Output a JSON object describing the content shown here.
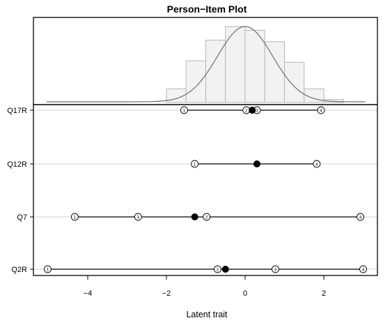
{
  "chart_data": {
    "type": "person-item",
    "title": "Person−Item Plot",
    "xlabel": "Latent trait",
    "xlim": [
      -5.1,
      3.1
    ],
    "x_ticks": [
      -4,
      -2,
      0,
      2
    ],
    "x_tick_labels": [
      "−4",
      "−2",
      "0",
      "2"
    ],
    "person_distribution": {
      "histogram": {
        "bin_edges": [
          -2.0,
          -1.5,
          -1.0,
          -0.5,
          0.0,
          0.5,
          1.0,
          1.5,
          2.0,
          2.5
        ],
        "heights": [
          0.18,
          0.55,
          0.82,
          1.0,
          0.95,
          0.8,
          0.53,
          0.18,
          0.04
        ]
      },
      "density_curve": {
        "mean": 0.0,
        "sd": 0.7
      }
    },
    "items": [
      {
        "name": "Q17R",
        "location": 0.18,
        "thresholds": [
          -1.55,
          0.03,
          0.3,
          1.93
        ],
        "threshold_labels": [
          "1",
          "2",
          "3",
          "4"
        ]
      },
      {
        "name": "Q12R",
        "location": 0.3,
        "thresholds": [
          -1.28,
          1.82
        ],
        "threshold_labels": [
          "1",
          "4"
        ]
      },
      {
        "name": "Q7",
        "location": -1.28,
        "thresholds": [
          -4.33,
          -2.72,
          -0.98,
          2.93
        ],
        "threshold_labels": [
          "1",
          "3",
          "2",
          "4"
        ]
      },
      {
        "name": "Q2R",
        "location": -0.5,
        "thresholds": [
          -5.02,
          -0.7,
          0.77,
          3.0
        ],
        "threshold_labels": [
          "1",
          "2",
          "3",
          "4"
        ]
      }
    ]
  }
}
